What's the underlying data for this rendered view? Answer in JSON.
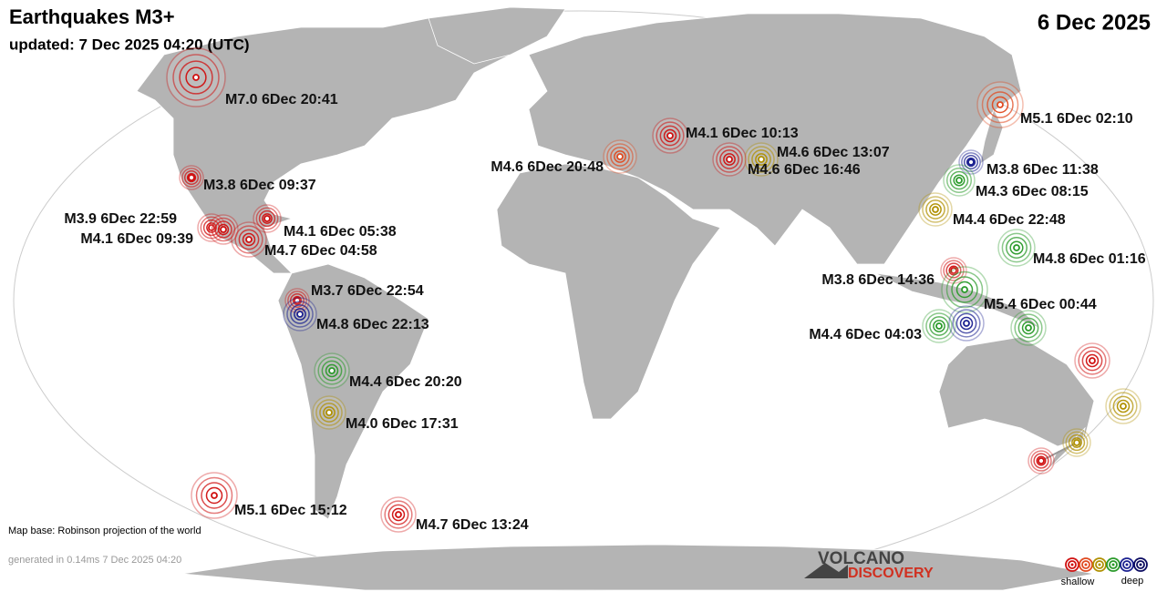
{
  "header": {
    "title": "Earthquakes M3+",
    "updated": "updated:  7 Dec 2025 04:20 (UTC)",
    "date": "6 Dec 2025"
  },
  "quakes": [
    {
      "label": "M7.0  6Dec 20:41",
      "color": "#d01010"
    },
    {
      "label": "M5.1  6Dec 02:10",
      "color": "#e04a20"
    },
    {
      "label": "M4.1  6Dec 10:13",
      "color": "#d01010"
    },
    {
      "label": "M4.6  6Dec 13:07",
      "color": "#b09000"
    },
    {
      "label": "M4.6  6Dec 16:46",
      "color": "#d01010"
    },
    {
      "label": "M4.6  6Dec 20:48",
      "color": "#e04a20"
    },
    {
      "label": "M3.8  6Dec 11:38",
      "color": "#1a2090"
    },
    {
      "label": "M4.3  6Dec 08:15",
      "color": "#2a9a2a"
    },
    {
      "label": "M3.8  6Dec 09:37",
      "color": "#d01010"
    },
    {
      "label": "M4.4  6Dec 22:48",
      "color": "#b09000"
    },
    {
      "label": "M3.9  6Dec 22:59",
      "color": "#d01010"
    },
    {
      "label": "M4.1  6Dec 09:39",
      "color": "#d01010"
    },
    {
      "label": "M4.1  6Dec 05:38",
      "color": "#d01010"
    },
    {
      "label": "M4.7  6Dec 04:58",
      "color": "#d01010"
    },
    {
      "label": "M4.8  6Dec 01:16",
      "color": "#2a9a2a"
    },
    {
      "label": "M3.8  6Dec 14:36",
      "color": "#d01010"
    },
    {
      "label": "M5.4  6Dec 00:44",
      "color": "#2a9a2a"
    },
    {
      "label": "M3.7  6Dec 22:54",
      "color": "#d01010"
    },
    {
      "label": "M4.8  6Dec 22:13",
      "color": "#1a2090"
    },
    {
      "label": "M4.4  6Dec 04:03",
      "color": "#2a9a2a"
    },
    {
      "label": "M4.4  6Dec 20:20",
      "color": "#2a9a2a"
    },
    {
      "label": "M4.0  6Dec 17:31",
      "color": "#b09000"
    },
    {
      "label": "M5.1  6Dec 15:12",
      "color": "#d01010"
    },
    {
      "label": "M4.7  6Dec 13:24",
      "color": "#d01010"
    },
    {
      "color": "#1a2090"
    },
    {
      "color": "#2a9a2a"
    },
    {
      "color": "#d01010"
    },
    {
      "color": "#b09000"
    },
    {
      "color": "#b09000"
    },
    {
      "color": "#d01010"
    }
  ],
  "footer": {
    "map_base": "Map base: Robinson projection of the world",
    "generated": "generated in 0.14ms  7 Dec 2025 04:20"
  },
  "logo": {
    "top": "VOLCANO",
    "bottom": "DISCOVERY"
  },
  "depth_legend": {
    "colors": [
      "#d01010",
      "#e04a20",
      "#b09000",
      "#2a9a2a",
      "#1a2090",
      "#0a0a60"
    ],
    "shallow": "shallow",
    "deep": "deep"
  }
}
